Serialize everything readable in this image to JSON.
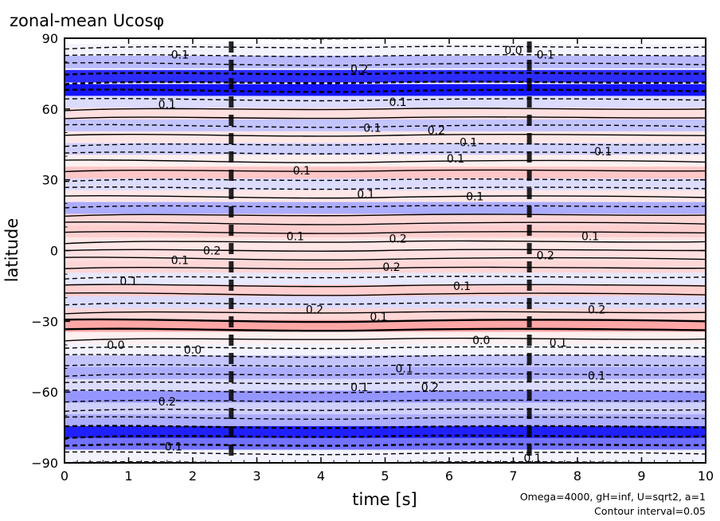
{
  "chart_data": {
    "type": "heatmap",
    "title": "zonal-mean Ucosφ",
    "xlabel": "time [s]",
    "ylabel": "latitude",
    "xlim": [
      0,
      10
    ],
    "ylim": [
      -90,
      90
    ],
    "x_ticks": [
      "0",
      "1",
      "2",
      "3",
      "4",
      "5",
      "6",
      "7",
      "8",
      "9",
      "10"
    ],
    "y_ticks": [
      "−90",
      "−60",
      "−30",
      "0",
      "30",
      "60",
      "90"
    ],
    "y_tick_values": [
      -90,
      -60,
      -30,
      0,
      30,
      60,
      90
    ],
    "annotation": [
      "Omega=4000, gH=inf, U=sqrt2, a=1",
      "Contour interval=0.05"
    ],
    "colors": {
      "positive": "#ff6060",
      "negative": "#3f3fff",
      "contour": "#000000",
      "background": "#ffffff"
    },
    "bands": [
      {
        "lat": 85,
        "value": -0.05
      },
      {
        "lat": 80,
        "value": -0.3
      },
      {
        "lat": 74,
        "value": -0.9
      },
      {
        "lat": 68,
        "value": -1.0
      },
      {
        "lat": 63,
        "value": -0.15
      },
      {
        "lat": 58,
        "value": 0.2
      },
      {
        "lat": 53,
        "value": -0.25
      },
      {
        "lat": 48,
        "value": 0.15
      },
      {
        "lat": 43,
        "value": -0.2
      },
      {
        "lat": 38,
        "value": 0.1
      },
      {
        "lat": 33,
        "value": 0.35
      },
      {
        "lat": 28,
        "value": -0.15
      },
      {
        "lat": 23,
        "value": 0.15
      },
      {
        "lat": 18,
        "value": -0.35
      },
      {
        "lat": 13,
        "value": 0.25
      },
      {
        "lat": 8,
        "value": 0.3
      },
      {
        "lat": 3,
        "value": 0.15
      },
      {
        "lat": -2,
        "value": 0.2
      },
      {
        "lat": -7,
        "value": 0.25
      },
      {
        "lat": -12,
        "value": -0.1
      },
      {
        "lat": -17,
        "value": 0.3
      },
      {
        "lat": -22,
        "value": -0.15
      },
      {
        "lat": -27,
        "value": 0.25
      },
      {
        "lat": -32,
        "value": 0.55
      },
      {
        "lat": -37,
        "value": 0.1
      },
      {
        "lat": -42,
        "value": -0.05
      },
      {
        "lat": -47,
        "value": -0.25
      },
      {
        "lat": -52,
        "value": -0.35
      },
      {
        "lat": -57,
        "value": -0.15
      },
      {
        "lat": -62,
        "value": -0.45
      },
      {
        "lat": -67,
        "value": -0.2
      },
      {
        "lat": -72,
        "value": -0.35
      },
      {
        "lat": -77,
        "value": -0.95
      },
      {
        "lat": -82,
        "value": -0.6
      },
      {
        "lat": -87,
        "value": -0.05
      }
    ],
    "contour_labels": [
      {
        "t": 1.8,
        "lat": 83,
        "text": "0.1"
      },
      {
        "t": 4.6,
        "lat": 77,
        "text": "0.2"
      },
      {
        "t": 7.0,
        "lat": 85,
        "text": "0.0"
      },
      {
        "t": 7.5,
        "lat": 83,
        "text": "0.1"
      },
      {
        "t": 1.6,
        "lat": 62,
        "text": "0.1"
      },
      {
        "t": 5.2,
        "lat": 63,
        "text": "0.1"
      },
      {
        "t": 4.8,
        "lat": 52,
        "text": "0.1"
      },
      {
        "t": 5.8,
        "lat": 51,
        "text": "0.2"
      },
      {
        "t": 6.3,
        "lat": 46,
        "text": "0.1"
      },
      {
        "t": 6.1,
        "lat": 39,
        "text": "0.1"
      },
      {
        "t": 8.4,
        "lat": 42,
        "text": "0.1"
      },
      {
        "t": 3.7,
        "lat": 34,
        "text": "0.1"
      },
      {
        "t": 4.7,
        "lat": 24,
        "text": "0.1"
      },
      {
        "t": 6.4,
        "lat": 23,
        "text": "0.1"
      },
      {
        "t": 3.6,
        "lat": 6,
        "text": "0.1"
      },
      {
        "t": 5.2,
        "lat": 5,
        "text": "0.2"
      },
      {
        "t": 8.2,
        "lat": 6,
        "text": "0.1"
      },
      {
        "t": 2.3,
        "lat": 0,
        "text": "0.2"
      },
      {
        "t": 1.8,
        "lat": -4,
        "text": "0.1"
      },
      {
        "t": 5.1,
        "lat": -7,
        "text": "0.2"
      },
      {
        "t": 7.5,
        "lat": -2,
        "text": "0.2"
      },
      {
        "t": 1.0,
        "lat": -13,
        "text": "0.1"
      },
      {
        "t": 6.2,
        "lat": -15,
        "text": "0.1"
      },
      {
        "t": 3.9,
        "lat": -25,
        "text": "0.2"
      },
      {
        "t": 4.9,
        "lat": -28,
        "text": "0.1"
      },
      {
        "t": 8.3,
        "lat": -25,
        "text": "0.2"
      },
      {
        "t": 0.8,
        "lat": -40,
        "text": "0.0"
      },
      {
        "t": 2.0,
        "lat": -42,
        "text": "0.0"
      },
      {
        "t": 6.5,
        "lat": -38,
        "text": "0.0"
      },
      {
        "t": 7.7,
        "lat": -39,
        "text": "0.1"
      },
      {
        "t": 5.3,
        "lat": -50,
        "text": "0.1"
      },
      {
        "t": 4.6,
        "lat": -58,
        "text": "0.1"
      },
      {
        "t": 5.7,
        "lat": -58,
        "text": "0.2"
      },
      {
        "t": 1.6,
        "lat": -64,
        "text": "0.2"
      },
      {
        "t": 8.3,
        "lat": -53,
        "text": "0.1"
      },
      {
        "t": 1.7,
        "lat": -83,
        "text": "0.1"
      },
      {
        "t": 7.3,
        "lat": -88,
        "text": "0.1"
      }
    ]
  }
}
